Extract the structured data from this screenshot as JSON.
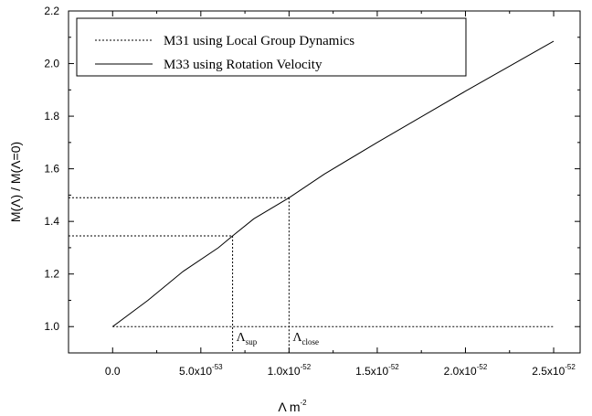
{
  "chart_data": {
    "type": "line",
    "xlabel_main": "Λ  m",
    "xlabel_sup": "-2",
    "ylabel": "M(Λ) / M(Λ=0)",
    "xlim": [
      -2.5e-53,
      2.65e-52
    ],
    "ylim": [
      0.9,
      2.2
    ],
    "x_ticks": [
      {
        "value": 0,
        "mant": "0.0",
        "exp": ""
      },
      {
        "value": 5e-53,
        "mant": "5.0x10",
        "exp": "-53"
      },
      {
        "value": 1e-52,
        "mant": "1.0x10",
        "exp": "-52"
      },
      {
        "value": 1.5e-52,
        "mant": "1.5x10",
        "exp": "-52"
      },
      {
        "value": 2e-52,
        "mant": "2.0x10",
        "exp": "-52"
      },
      {
        "value": 2.5e-52,
        "mant": "2.5x10",
        "exp": "-52"
      }
    ],
    "y_ticks": [
      {
        "value": 1.0,
        "label": "1.0"
      },
      {
        "value": 1.2,
        "label": "1.2"
      },
      {
        "value": 1.4,
        "label": "1.4"
      },
      {
        "value": 1.6,
        "label": "1.6"
      },
      {
        "value": 1.8,
        "label": "1.8"
      },
      {
        "value": 2.0,
        "label": "2.0"
      },
      {
        "value": 2.2,
        "label": "2.2"
      }
    ],
    "series": [
      {
        "name": "M31 using Local Group Dynamics",
        "style": "dotted",
        "x": [
          0,
          2.5e-52
        ],
        "y": [
          1.0,
          1.0
        ]
      },
      {
        "name": "M33 using Rotation Velocity",
        "style": "solid",
        "x": [
          0,
          2e-53,
          4e-53,
          6e-53,
          6.8e-53,
          8e-53,
          1e-52,
          1.2e-52,
          1.5e-52,
          2e-52,
          2.5e-52
        ],
        "y": [
          1.0,
          1.1,
          1.21,
          1.3,
          1.345,
          1.41,
          1.49,
          1.58,
          1.7,
          1.895,
          2.085
        ]
      }
    ],
    "annotations": [
      {
        "main": "Λ",
        "sub": "sup",
        "x": 6.8e-53,
        "y": 1.345
      },
      {
        "main": "Λ",
        "sub": "close",
        "x": 1e-52,
        "y": 1.49
      }
    ],
    "legend_position": "top-left",
    "grid": false
  }
}
